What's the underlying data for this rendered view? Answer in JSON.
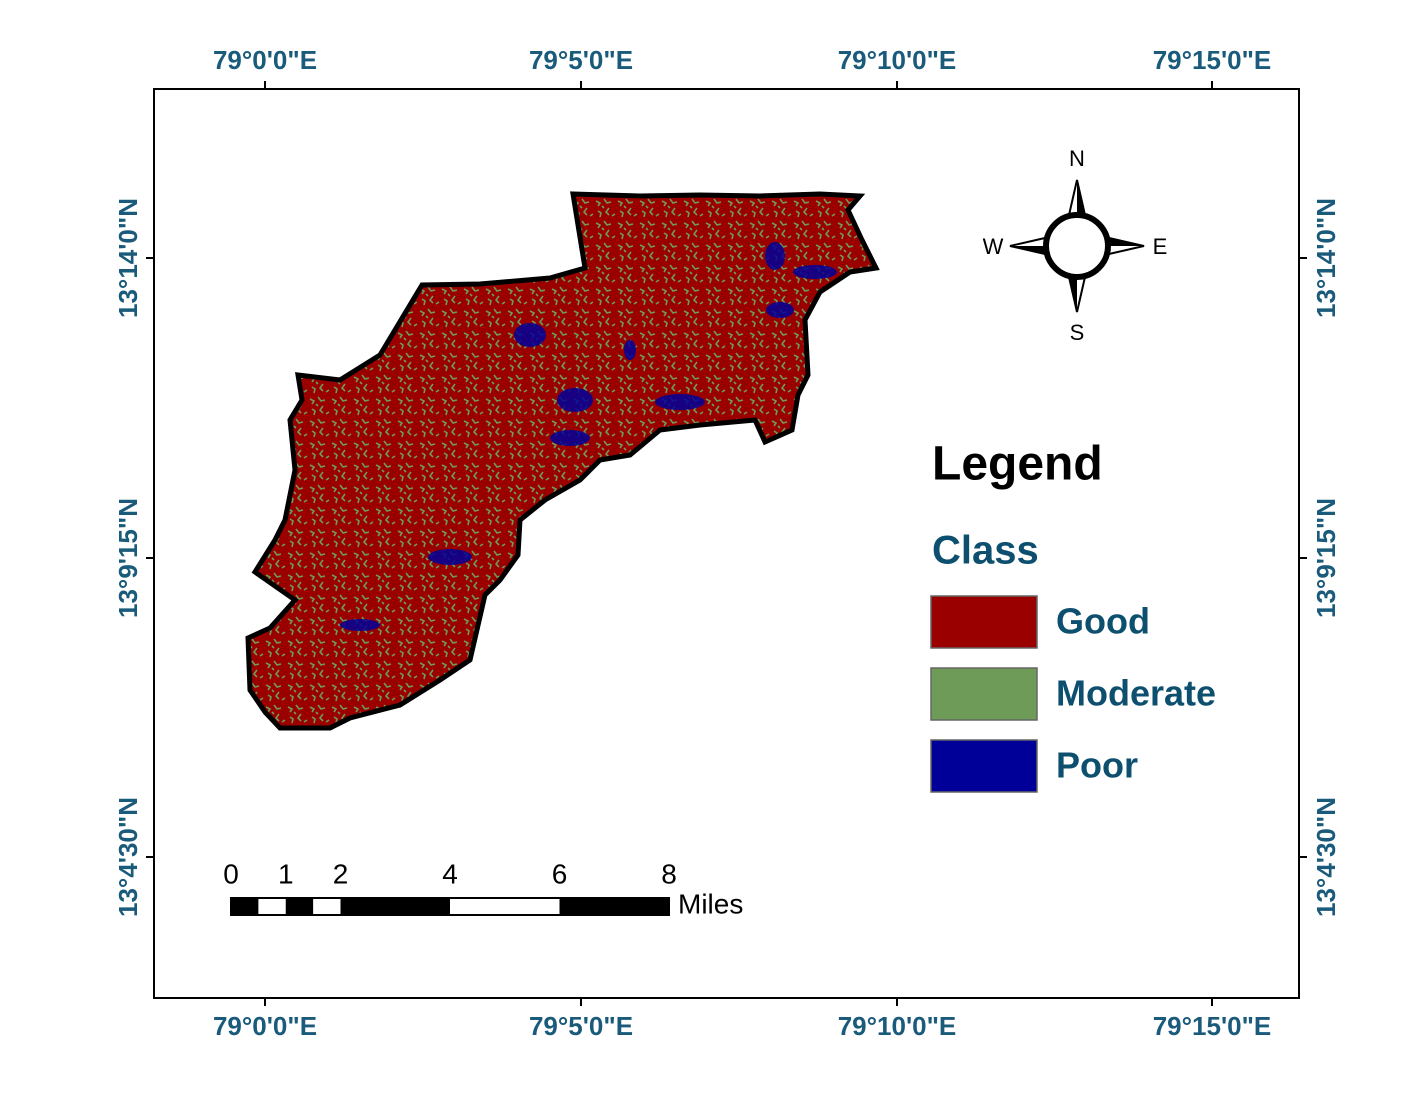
{
  "graticule": {
    "longitude_labels": [
      "79°0'0\"E",
      "79°5'0\"E",
      "79°10'0\"E",
      "79°15'0\"E"
    ],
    "latitude_labels": [
      "13°14'0\"N",
      "13°9'15\"N",
      "13°4'30\"N"
    ]
  },
  "north_arrow": {
    "north": "N",
    "south": "S",
    "east": "E",
    "west": "W"
  },
  "legend": {
    "title": "Legend",
    "subtitle": "Class",
    "items": [
      {
        "label": "Good",
        "color": "#9b0000"
      },
      {
        "label": "Moderate",
        "color": "#6e9b57"
      },
      {
        "label": "Poor",
        "color": "#000099"
      }
    ]
  },
  "scale_bar": {
    "labels": [
      "0",
      "1",
      "2",
      "4",
      "6",
      "8"
    ],
    "unit": "Miles"
  }
}
